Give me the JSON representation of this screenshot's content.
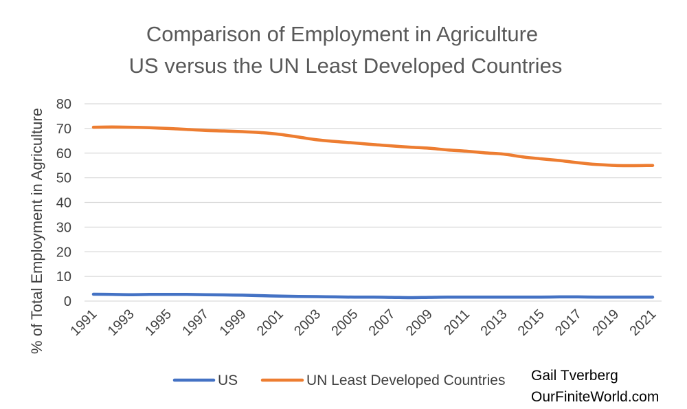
{
  "chart_data": {
    "type": "line",
    "title_line1": "Comparison of Employment in Agriculture",
    "title_line2": "US versus the UN Least Developed Countries",
    "xlabel": "",
    "ylabel": "% of Total Employment in Agriculture",
    "ylim": [
      0,
      80
    ],
    "yticks": [
      0,
      10,
      20,
      30,
      40,
      50,
      60,
      70,
      80
    ],
    "x_tick_labels": [
      "1991",
      "1993",
      "1995",
      "1997",
      "1999",
      "2001",
      "2003",
      "2005",
      "2007",
      "2009",
      "2011",
      "2013",
      "2015",
      "2017",
      "2019",
      "2021"
    ],
    "x": [
      1991,
      1992,
      1993,
      1994,
      1995,
      1996,
      1997,
      1998,
      1999,
      2000,
      2001,
      2002,
      2003,
      2004,
      2005,
      2006,
      2007,
      2008,
      2009,
      2010,
      2011,
      2012,
      2013,
      2014,
      2015,
      2016,
      2017,
      2018,
      2019,
      2020,
      2021
    ],
    "grid": true,
    "legend_position": "bottom",
    "series": [
      {
        "name": "US",
        "color": "#4472C4",
        "values": [
          2.8,
          2.7,
          2.6,
          2.7,
          2.7,
          2.7,
          2.6,
          2.5,
          2.4,
          2.2,
          2.0,
          1.9,
          1.8,
          1.7,
          1.6,
          1.6,
          1.5,
          1.4,
          1.5,
          1.6,
          1.6,
          1.6,
          1.6,
          1.6,
          1.6,
          1.7,
          1.7,
          1.6,
          1.6,
          1.6,
          1.6
        ]
      },
      {
        "name": "UN Least Developed Countries",
        "color": "#ED7D31",
        "values": [
          70.5,
          70.6,
          70.5,
          70.3,
          70.0,
          69.6,
          69.2,
          69.0,
          68.7,
          68.3,
          67.6,
          66.5,
          65.4,
          64.7,
          64.1,
          63.5,
          62.9,
          62.4,
          62.0,
          61.3,
          60.8,
          60.1,
          59.6,
          58.5,
          57.7,
          57.0,
          56.1,
          55.4,
          55.0,
          54.9,
          55.0
        ]
      }
    ],
    "credit_line1": "Gail Tverberg",
    "credit_line2": "OurFiniteWorld.com"
  }
}
